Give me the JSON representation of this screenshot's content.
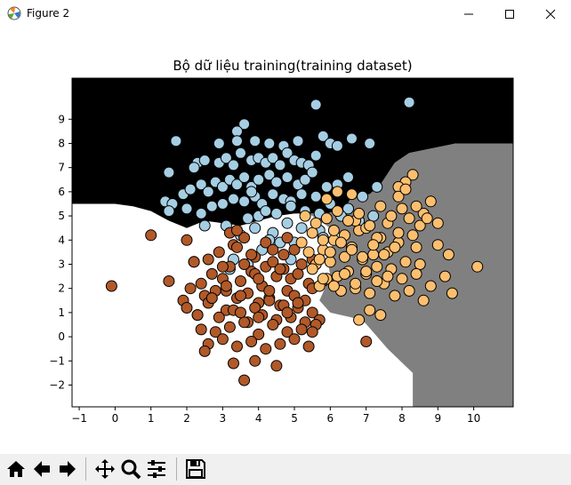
{
  "window": {
    "title": "Figure 2",
    "icon": "matplotlib-icon",
    "controls": [
      "minimize-icon",
      "maximize-icon",
      "close-icon"
    ]
  },
  "toolbar": {
    "buttons": [
      "home-icon",
      "back-icon",
      "forward-icon",
      "pan-icon",
      "zoom-icon",
      "configure-subplots-icon",
      "save-icon"
    ]
  },
  "colors": {
    "region_class0": "#000000",
    "region_class1": "#ffffff",
    "region_class2": "#808080",
    "point_class0": "#a6cee3",
    "point_class1": "#b15928",
    "point_class2": "#fdbf6f",
    "point_edge": "#000000"
  },
  "chart_data": {
    "type": "scatter",
    "title": "Bộ dữ liệu training(training dataset)",
    "xlabel": "",
    "ylabel": "",
    "xlim": [
      -1.2,
      11.1
    ],
    "ylim": [
      -2.9,
      10.7
    ],
    "x_ticks": [
      -1,
      0,
      1,
      2,
      3,
      4,
      5,
      6,
      7,
      8,
      9,
      10
    ],
    "y_ticks": [
      -2,
      -1,
      0,
      1,
      2,
      3,
      4,
      5,
      6,
      7,
      8,
      9
    ],
    "grid": false,
    "legend": "none",
    "decision_regions": [
      {
        "class": 0,
        "color_key": "region_class0",
        "polygon": [
          [
            -1.2,
            10.7
          ],
          [
            11.1,
            10.7
          ],
          [
            11.1,
            8.0
          ],
          [
            9.5,
            8.0
          ],
          [
            8.2,
            7.6
          ],
          [
            7.8,
            7.2
          ],
          [
            7.4,
            6.3
          ],
          [
            7.1,
            5.9
          ],
          [
            6.6,
            5.8
          ],
          [
            6.4,
            5.3
          ],
          [
            5.9,
            5.1
          ],
          [
            5.4,
            5.1
          ],
          [
            5.0,
            5.1
          ],
          [
            4.5,
            5.0
          ],
          [
            4.0,
            4.8
          ],
          [
            3.5,
            4.6
          ],
          [
            3.0,
            4.7
          ],
          [
            2.5,
            4.8
          ],
          [
            2.0,
            4.5
          ],
          [
            1.5,
            4.8
          ],
          [
            1.0,
            5.2
          ],
          [
            0.5,
            5.4
          ],
          [
            0.0,
            5.5
          ],
          [
            -1.2,
            5.5
          ]
        ]
      },
      {
        "class": 2,
        "color_key": "region_class2",
        "polygon": [
          [
            11.1,
            8.0
          ],
          [
            9.5,
            8.0
          ],
          [
            8.2,
            7.6
          ],
          [
            7.8,
            7.2
          ],
          [
            7.4,
            6.3
          ],
          [
            7.1,
            5.9
          ],
          [
            6.6,
            5.8
          ],
          [
            6.4,
            5.3
          ],
          [
            5.9,
            5.1
          ],
          [
            5.4,
            5.1
          ],
          [
            6.3,
            4.2
          ],
          [
            5.9,
            3.5
          ],
          [
            6.0,
            2.5
          ],
          [
            5.7,
            1.5
          ],
          [
            6.0,
            1.0
          ],
          [
            6.9,
            0.7
          ],
          [
            7.6,
            -0.5
          ],
          [
            8.3,
            -1.5
          ],
          [
            8.3,
            -2.9
          ],
          [
            11.1,
            -2.9
          ]
        ]
      }
    ],
    "series": [
      {
        "name": "",
        "class": 0,
        "color_key": "point_class0",
        "x": [
          8.2,
          5.6,
          3.6,
          3.4,
          1.7,
          2.9,
          3.4,
          3.9,
          4.3,
          4.7,
          5.1,
          5.8,
          6.0,
          6.2,
          7.1,
          6.6,
          1.5,
          2.3,
          2.5,
          2.2,
          2.9,
          3.1,
          3.3,
          3.5,
          3.8,
          4.0,
          4.2,
          4.4,
          4.6,
          4.8,
          5.0,
          5.2,
          5.4,
          5.6,
          1.4,
          1.9,
          2.1,
          2.4,
          2.6,
          2.8,
          3.0,
          3.2,
          3.4,
          3.6,
          3.8,
          4.0,
          4.3,
          4.5,
          4.8,
          5.1,
          5.3,
          5.5,
          5.9,
          6.2,
          6.5,
          1.6,
          2.0,
          2.4,
          2.7,
          3.0,
          3.3,
          3.6,
          3.9,
          4.1,
          4.4,
          4.7,
          4.9,
          5.2,
          5.6,
          6.0,
          6.5,
          6.9,
          7.3,
          2.5,
          3.1,
          3.7,
          4.0,
          4.2,
          4.5,
          4.9,
          5.3,
          5.7,
          6.3,
          6.8,
          7.2,
          3.5,
          3.9,
          4.4,
          4.8,
          5.2,
          5.7,
          3.3,
          4.1,
          4.6,
          3.2,
          3.7,
          1.5,
          4.3,
          5.0,
          5.8,
          4.9,
          3.8
        ],
        "y": [
          9.7,
          9.6,
          8.8,
          8.5,
          8.1,
          8.0,
          8.1,
          8.1,
          8.0,
          7.9,
          8.1,
          8.3,
          8.0,
          7.9,
          8.0,
          8.2,
          6.8,
          7.2,
          7.3,
          7.0,
          7.2,
          7.4,
          7.1,
          7.6,
          7.3,
          7.4,
          7.2,
          7.4,
          7.1,
          7.6,
          7.3,
          7.2,
          7.1,
          7.5,
          5.6,
          5.9,
          6.1,
          6.3,
          6.0,
          6.4,
          6.2,
          6.5,
          6.3,
          6.6,
          6.2,
          6.5,
          6.7,
          6.4,
          6.6,
          6.3,
          6.5,
          6.8,
          6.2,
          6.3,
          6.6,
          5.5,
          5.3,
          5.1,
          5.4,
          5.5,
          5.7,
          5.6,
          5.8,
          5.5,
          5.9,
          5.7,
          5.6,
          5.9,
          5.8,
          5.5,
          5.3,
          5.8,
          6.2,
          4.6,
          4.6,
          4.9,
          5.0,
          5.2,
          5.1,
          5.4,
          5.2,
          5.1,
          5.0,
          4.8,
          5.0,
          4.2,
          4.5,
          4.3,
          4.7,
          4.5,
          4.4,
          3.2,
          3.6,
          3.9,
          2.8,
          3.0,
          5.2,
          4.0,
          3.9,
          4.1,
          3.2,
          6.0
        ]
      },
      {
        "name": "",
        "class": 1,
        "color_key": "point_class1",
        "x": [
          -0.1,
          1.0,
          1.5,
          1.9,
          2.0,
          2.1,
          2.3,
          2.2,
          2.0,
          2.4,
          2.6,
          2.5,
          2.7,
          2.8,
          2.9,
          3.0,
          3.1,
          3.2,
          3.3,
          3.4,
          3.5,
          3.6,
          3.7,
          3.8,
          3.9,
          4.0,
          4.1,
          4.2,
          4.3,
          4.4,
          4.5,
          4.6,
          4.7,
          4.8,
          4.9,
          5.0,
          5.1,
          5.2,
          5.3,
          5.4,
          5.5,
          2.3,
          2.6,
          2.9,
          3.1,
          3.3,
          3.5,
          3.7,
          3.9,
          4.1,
          4.3,
          4.5,
          4.7,
          4.9,
          5.1,
          5.3,
          5.5,
          5.7,
          2.4,
          2.8,
          3.2,
          3.6,
          4.0,
          4.4,
          4.8,
          5.2,
          5.6,
          2.6,
          3.0,
          3.4,
          3.8,
          4.2,
          4.6,
          5.0,
          5.4,
          2.7,
          3.1,
          3.5,
          3.9,
          4.3,
          4.7,
          5.1,
          5.5,
          3.0,
          3.4,
          3.8,
          4.2,
          4.6,
          5.0,
          3.2,
          3.6,
          4.0,
          4.4,
          4.8,
          3.3,
          3.9,
          4.5,
          3.6,
          2.5,
          7.0,
          5.5,
          2.2,
          3.4,
          4.0,
          4.8,
          5.8
        ],
        "y": [
          2.1,
          4.2,
          2.3,
          1.5,
          1.2,
          2.0,
          0.9,
          3.1,
          4.0,
          2.2,
          3.2,
          1.7,
          2.6,
          1.9,
          3.5,
          2.4,
          1.1,
          2.9,
          3.8,
          1.6,
          2.3,
          4.1,
          1.8,
          2.7,
          3.3,
          1.4,
          2.1,
          2.9,
          1.6,
          3.1,
          2.5,
          1.3,
          2.8,
          1.9,
          2.4,
          1.7,
          2.6,
          3.0,
          1.5,
          2.2,
          3.2,
          0.9,
          1.4,
          0.8,
          1.9,
          1.1,
          1.7,
          0.6,
          1.2,
          0.9,
          1.5,
          0.7,
          1.3,
          0.8,
          1.2,
          0.6,
          1.0,
          0.7,
          0.3,
          0.2,
          0.4,
          0.6,
          0.1,
          0.5,
          0.2,
          0.3,
          0.5,
          -0.3,
          -0.1,
          -0.4,
          -0.2,
          -0.5,
          -0.3,
          -0.1,
          -0.4,
          1.6,
          2.1,
          1.0,
          2.6,
          1.9,
          3.4,
          1.4,
          2.0,
          2.9,
          3.7,
          3.4,
          3.9,
          2.8,
          3.6,
          4.3,
          3.0,
          2.4,
          3.6,
          4.1,
          -1.1,
          -1.0,
          -1.2,
          -1.8,
          -0.6,
          -0.2,
          0.2,
          3.1,
          4.4,
          0.8,
          1.0,
          2.3
        ]
      },
      {
        "name": "",
        "class": 2,
        "color_key": "point_class2",
        "x": [
          10.1,
          9.4,
          9.0,
          9.3,
          9.2,
          8.8,
          8.6,
          8.5,
          8.4,
          8.4,
          8.3,
          8.2,
          8.1,
          8.0,
          7.9,
          7.8,
          7.7,
          7.6,
          7.5,
          7.4,
          7.3,
          7.2,
          7.1,
          7.0,
          6.9,
          6.8,
          6.7,
          6.6,
          6.5,
          6.4,
          6.3,
          6.2,
          6.1,
          6.0,
          5.9,
          5.8,
          5.7,
          5.6,
          5.5,
          5.4,
          8.5,
          8.2,
          7.9,
          7.6,
          7.3,
          7.0,
          6.7,
          6.4,
          6.1,
          5.8,
          5.5,
          5.2,
          8.0,
          7.7,
          7.4,
          7.1,
          6.8,
          6.5,
          6.2,
          5.9,
          5.6,
          5.3,
          7.8,
          7.5,
          7.2,
          6.9,
          6.6,
          6.3,
          6.0,
          5.7,
          7.6,
          7.3,
          7.0,
          6.7,
          6.4,
          6.1,
          5.8,
          8.3,
          8.1,
          7.9,
          8.6,
          8.7,
          9.0,
          8.8,
          7.1,
          7.4,
          6.8,
          6.6,
          6.2,
          5.9,
          7.9,
          8.1,
          8.4
        ],
        "y": [
          2.9,
          1.8,
          3.8,
          3.4,
          2.5,
          2.1,
          1.5,
          3.0,
          3.7,
          2.6,
          4.2,
          1.9,
          3.1,
          2.4,
          3.9,
          1.7,
          2.8,
          3.5,
          2.2,
          4.1,
          2.9,
          3.4,
          1.8,
          2.6,
          3.2,
          4.4,
          2.0,
          3.7,
          2.7,
          3.3,
          1.9,
          2.5,
          4.0,
          3.1,
          2.4,
          3.6,
          2.1,
          3.0,
          2.8,
          3.5,
          4.6,
          4.9,
          4.3,
          4.7,
          4.1,
          4.5,
          4.8,
          4.2,
          4.4,
          4.0,
          4.3,
          3.9,
          5.3,
          5.0,
          5.4,
          4.6,
          5.1,
          4.8,
          5.2,
          4.9,
          4.7,
          5.0,
          3.7,
          3.4,
          3.8,
          3.3,
          3.6,
          3.9,
          3.5,
          3.2,
          2.5,
          2.3,
          2.7,
          2.2,
          2.6,
          2.1,
          2.4,
          6.7,
          6.4,
          6.2,
          5.1,
          4.9,
          4.7,
          5.6,
          1.1,
          0.9,
          0.7,
          5.9,
          6.0,
          5.7,
          5.8,
          6.1,
          5.4
        ]
      }
    ]
  }
}
